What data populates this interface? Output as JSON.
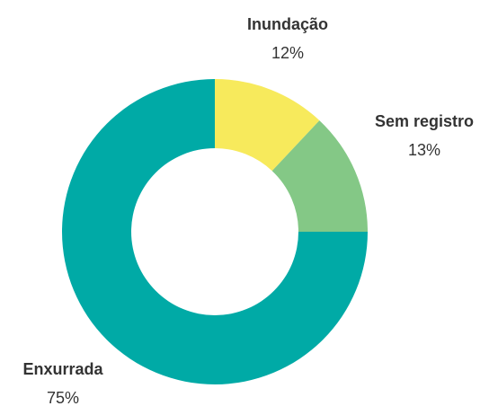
{
  "chart_data": {
    "type": "donut",
    "categories": [
      "Inundação",
      "Sem registro",
      "Enxurrada"
    ],
    "values": [
      12,
      13,
      75
    ],
    "value_labels": [
      "12%",
      "13%",
      "75%"
    ],
    "colors": [
      "#f7ea5c",
      "#84c886",
      "#00aaa6"
    ]
  }
}
